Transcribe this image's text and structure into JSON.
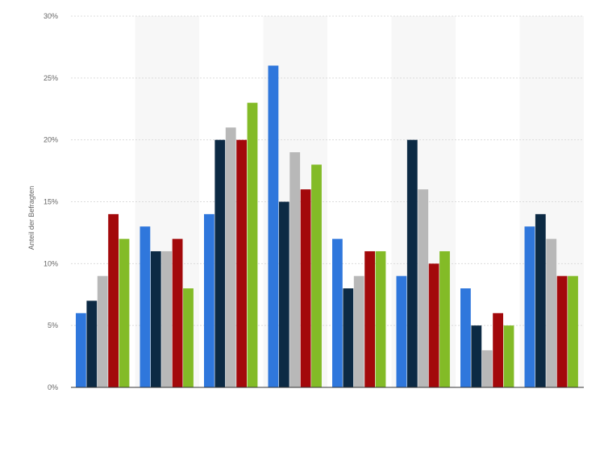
{
  "chart_data": {
    "type": "bar",
    "ylabel": "Anteil der Befragten",
    "ylim": [
      0,
      30
    ],
    "yticks": [
      0,
      5,
      10,
      15,
      20,
      25,
      30
    ],
    "ytick_labels": [
      "0%",
      "5%",
      "10%",
      "15%",
      "20%",
      "25%",
      "30%"
    ],
    "grid": true,
    "series": [
      {
        "color": "#2f77dc",
        "values": [
          6,
          13,
          14,
          26,
          12,
          9,
          8,
          13
        ]
      },
      {
        "color": "#0c2a44",
        "values": [
          7,
          11,
          20,
          15,
          8,
          20,
          5,
          14
        ]
      },
      {
        "color": "#b8b8b8",
        "values": [
          9,
          11,
          21,
          19,
          9,
          16,
          3,
          12
        ]
      },
      {
        "color": "#a3090b",
        "values": [
          14,
          12,
          20,
          16,
          11,
          10,
          6,
          9
        ]
      },
      {
        "color": "#83bb27",
        "values": [
          12,
          8,
          23,
          18,
          11,
          11,
          5,
          9
        ]
      }
    ]
  }
}
